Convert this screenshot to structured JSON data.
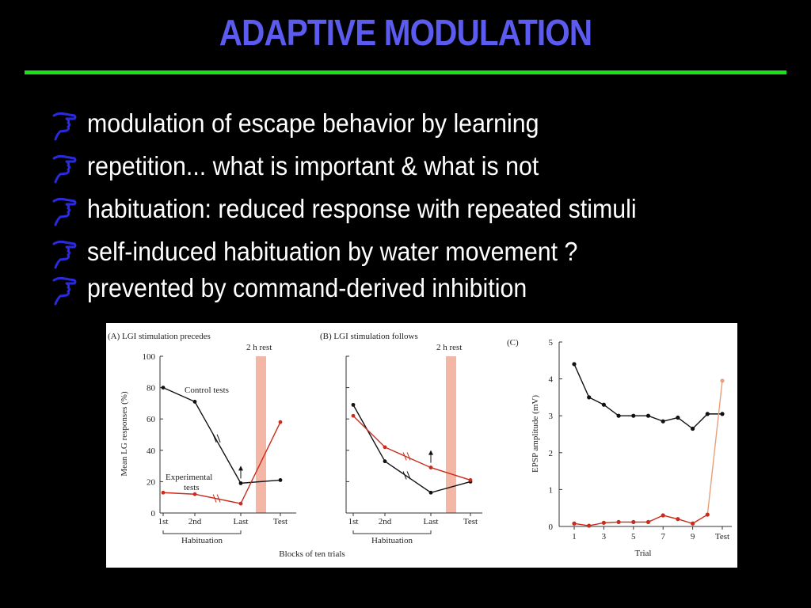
{
  "slide": {
    "title": "ADAPTIVE MODULATION",
    "bullets": [
      "modulation of escape behavior by learning",
      "repetition... what is important & what is not",
      "habituation: reduced response with repeated stimuli",
      "self-induced habituation by water movement ?",
      "prevented by command-derived inhibition"
    ]
  },
  "colors": {
    "title": "#5b5bf0",
    "rule": "#17e317",
    "bullet_icon": "#2a2ae0",
    "control": "#111111",
    "experimental": "#cc2a1a",
    "rest_band": "#f4b7a6"
  },
  "figure": {
    "xlabel": "Blocks of ten trials",
    "habituation_label": "Habituation",
    "rest_label": "2 h rest"
  },
  "chart_data": [
    {
      "type": "line",
      "panel": "(A)",
      "title": "LGI stimulation precedes",
      "ylabel": "Mean LG responses (%)",
      "ylim": [
        0,
        100
      ],
      "yticks": [
        "0",
        "20",
        "40",
        "60",
        "80",
        "100"
      ],
      "categories": [
        "1st",
        "2nd",
        "Last",
        "Test"
      ],
      "series": [
        {
          "name": "Control tests",
          "values": [
            80,
            71,
            19,
            21
          ]
        },
        {
          "name": "Experimental tests",
          "values": [
            13,
            12,
            6,
            58
          ]
        }
      ]
    },
    {
      "type": "line",
      "panel": "(B)",
      "title": "LGI stimulation follows",
      "ylim": [
        0,
        100
      ],
      "categories": [
        "1st",
        "2nd",
        "Last",
        "Test"
      ],
      "series": [
        {
          "values": [
            69,
            33,
            13,
            20
          ]
        },
        {
          "values": [
            62,
            42,
            29,
            21
          ]
        }
      ]
    },
    {
      "type": "line",
      "panel": "(C)",
      "ylabel": "EPSP amplitude (mV)",
      "xlabel": "Trial",
      "ylim": [
        0,
        5
      ],
      "yticks": [
        "0",
        "1",
        "2",
        "3",
        "4",
        "5"
      ],
      "xticks": [
        "1",
        "3",
        "5",
        "7",
        "9",
        "Test"
      ],
      "x": [
        1,
        2,
        3,
        4,
        5,
        6,
        7,
        8,
        9,
        10,
        11
      ],
      "series": [
        {
          "values": [
            4.4,
            3.5,
            3.3,
            3.0,
            3.0,
            3.0,
            2.85,
            2.95,
            2.65,
            3.05,
            3.05
          ]
        },
        {
          "values": [
            0.08,
            0.02,
            0.1,
            0.12,
            0.12,
            0.12,
            0.3,
            0.2,
            0.08,
            0.32,
            3.95
          ]
        }
      ]
    }
  ]
}
